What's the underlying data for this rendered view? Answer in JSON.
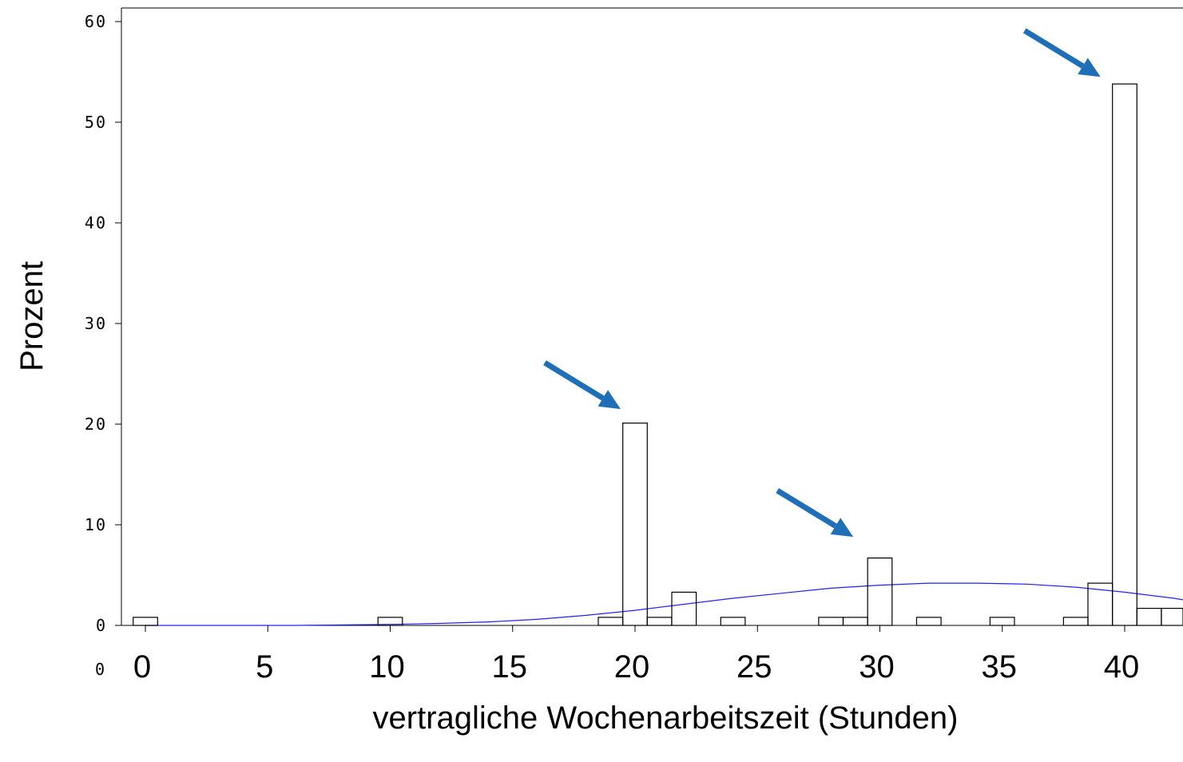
{
  "chart_data": {
    "type": "bar",
    "title": "",
    "xlabel": "vertragliche Wochenarbeitszeit (Stunden)",
    "ylabel": "Prozent",
    "ylim": [
      0,
      60
    ],
    "xlim": [
      -0.5,
      42.5
    ],
    "bin_width": 1,
    "y_ticks": [
      "0",
      "10",
      "20",
      "30",
      "40",
      "50",
      "60"
    ],
    "x_ticks": [
      "0",
      "5",
      "10",
      "15",
      "20",
      "25",
      "30",
      "35",
      "40"
    ],
    "corner_label": "0",
    "bars": [
      {
        "x": 0,
        "value": 0.8
      },
      {
        "x": 10,
        "value": 0.8
      },
      {
        "x": 19,
        "value": 0.8
      },
      {
        "x": 20,
        "value": 20.1
      },
      {
        "x": 21,
        "value": 0.8
      },
      {
        "x": 22,
        "value": 3.3
      },
      {
        "x": 24,
        "value": 0.8
      },
      {
        "x": 28,
        "value": 0.8
      },
      {
        "x": 29,
        "value": 0.8
      },
      {
        "x": 30,
        "value": 6.7
      },
      {
        "x": 32,
        "value": 0.8
      },
      {
        "x": 35,
        "value": 0.8
      },
      {
        "x": 38,
        "value": 0.8
      },
      {
        "x": 39,
        "value": 4.2
      },
      {
        "x": 40,
        "value": 53.8
      },
      {
        "x": 41,
        "value": 1.7
      },
      {
        "x": 42,
        "value": 1.7
      }
    ],
    "normal_curve": {
      "color": "#2222ee",
      "x": [
        0,
        2,
        4,
        6,
        8,
        10,
        12,
        14,
        16,
        18,
        20,
        22,
        24,
        26,
        28,
        30,
        32,
        34,
        36,
        38,
        40,
        42,
        42.5
      ],
      "y": [
        0.0,
        0.0,
        0.0,
        0.0,
        0.05,
        0.1,
        0.2,
        0.35,
        0.6,
        1.0,
        1.5,
        2.1,
        2.7,
        3.2,
        3.7,
        4.0,
        4.2,
        4.2,
        4.1,
        3.8,
        3.3,
        2.7,
        2.5
      ]
    },
    "arrows": {
      "color": "#1f6fb8",
      "targets": [
        {
          "x": 20,
          "y": 21.5
        },
        {
          "x": 29.5,
          "y": 8.8
        },
        {
          "x": 39.6,
          "y": 54.5
        }
      ]
    },
    "grid": false,
    "legend": "none"
  }
}
